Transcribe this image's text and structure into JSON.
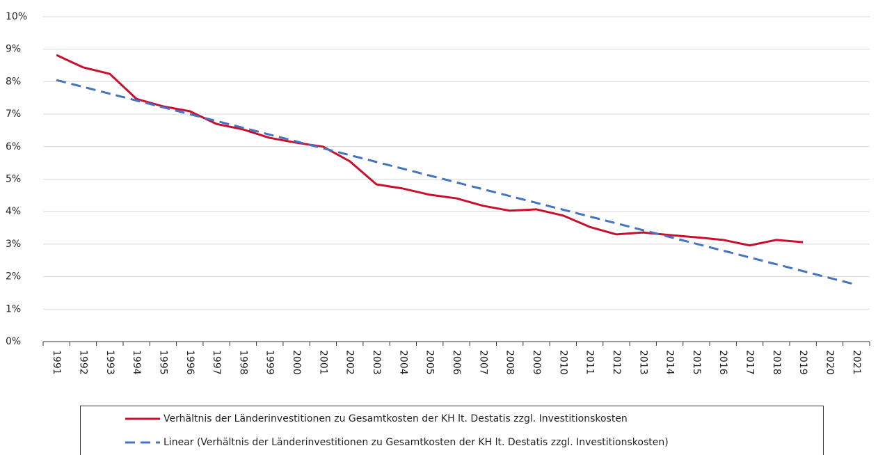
{
  "chart_data": {
    "type": "line",
    "categories": [
      "1991",
      "1992",
      "1993",
      "1994",
      "1995",
      "1996",
      "1997",
      "1998",
      "1999",
      "2000",
      "2001",
      "2002",
      "2003",
      "2004",
      "2005",
      "2006",
      "2007",
      "2008",
      "2009",
      "2010",
      "2011",
      "2012",
      "2013",
      "2014",
      "2015",
      "2016",
      "2017",
      "2018",
      "2019",
      "2020",
      "2021"
    ],
    "series": [
      {
        "name": "Verhältnis der Länderinvestitionen zu Gesamtkosten der KH lt. Destatis zzgl. Investitionskosten",
        "color": "#c8102e",
        "style": "solid",
        "values": [
          8.82,
          8.44,
          8.24,
          7.47,
          7.24,
          7.09,
          6.7,
          6.53,
          6.27,
          6.12,
          6.0,
          5.55,
          4.84,
          4.71,
          4.52,
          4.41,
          4.18,
          4.03,
          4.07,
          3.88,
          3.53,
          3.3,
          3.36,
          3.28,
          3.21,
          3.13,
          2.96,
          3.13,
          3.06,
          null,
          null
        ]
      },
      {
        "name": "Linear (Verhältnis der Länderinvestitionen zu Gesamtkosten der KH lt. Destatis zzgl. Investitionskosten)",
        "color": "#4472c4",
        "style": "dashed",
        "values": [
          8.05,
          7.84,
          7.63,
          7.42,
          7.21,
          7.0,
          6.79,
          6.58,
          6.37,
          6.16,
          5.95,
          5.74,
          5.53,
          5.32,
          5.11,
          4.9,
          4.69,
          4.48,
          4.27,
          4.06,
          3.85,
          3.64,
          3.43,
          3.22,
          3.01,
          2.8,
          2.59,
          2.38,
          2.17,
          1.96,
          1.75
        ]
      }
    ],
    "ylim": [
      0,
      10
    ],
    "yticks": [
      {
        "value": 0,
        "label": "0%"
      },
      {
        "value": 1,
        "label": "1%"
      },
      {
        "value": 2,
        "label": "2%"
      },
      {
        "value": 3,
        "label": "3%"
      },
      {
        "value": 4,
        "label": "4%"
      },
      {
        "value": 5,
        "label": "5%"
      },
      {
        "value": 6,
        "label": "6%"
      },
      {
        "value": 7,
        "label": "7%"
      },
      {
        "value": 8,
        "label": "8%"
      },
      {
        "value": 9,
        "label": "9%"
      },
      {
        "value": 10,
        "label": "10%"
      }
    ],
    "grid": true,
    "legend": "bottom"
  }
}
